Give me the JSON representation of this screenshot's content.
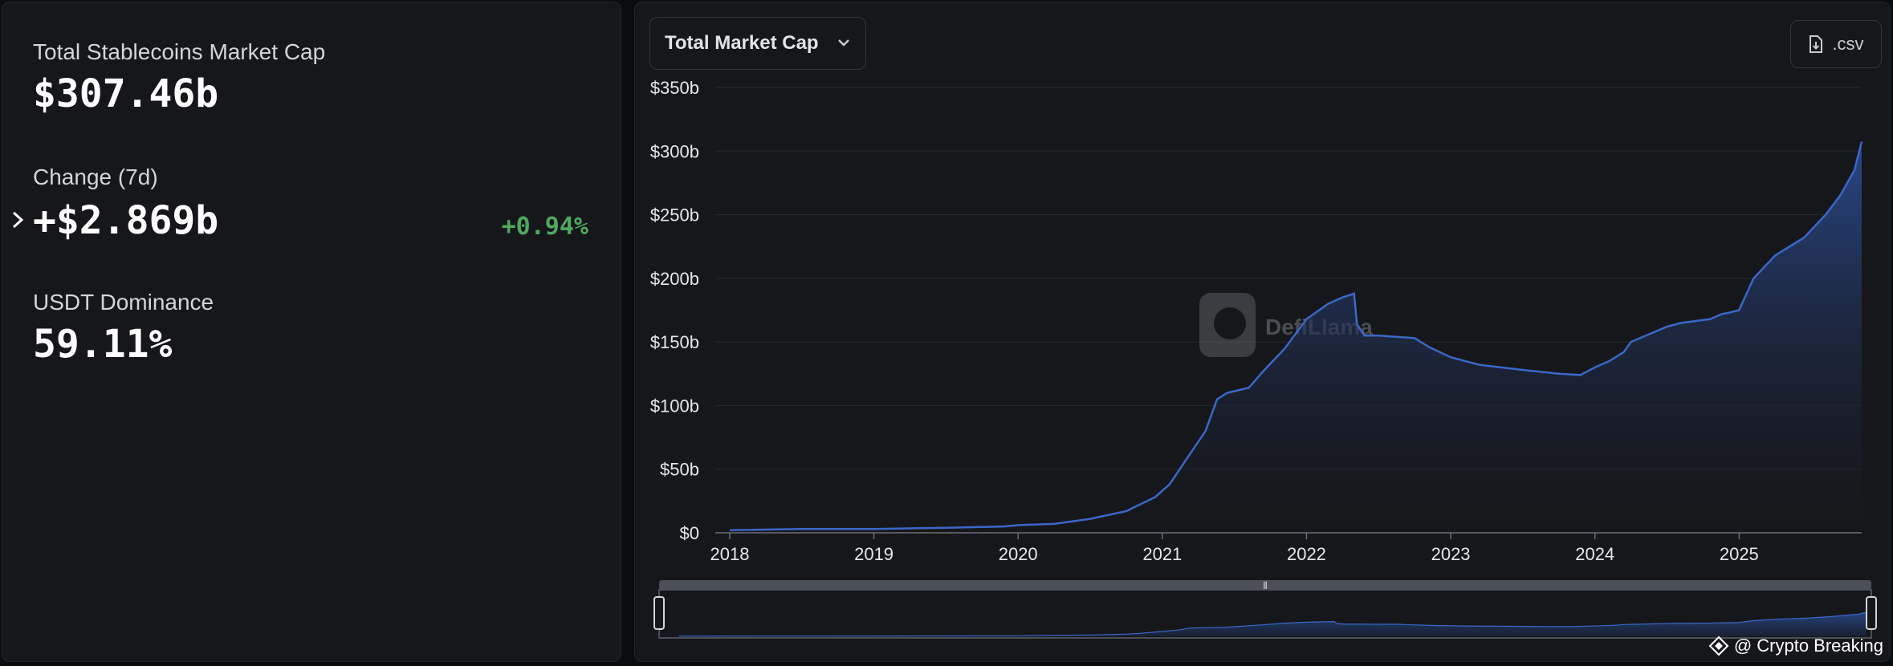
{
  "stats": {
    "market_cap_label": "Total Stablecoins Market Cap",
    "market_cap_value": "$307.46b",
    "change_label": "Change (7d)",
    "change_value": "+$2.869b",
    "change_pct": "+0.94%",
    "dominance_label": "USDT Dominance",
    "dominance_value": "59.11%"
  },
  "controls": {
    "dropdown_label": "Total Market Cap",
    "csv_label": ".csv"
  },
  "watermark": "DefiLlama",
  "credit": "@ Crypto Breaking",
  "colors": {
    "accent": "#3b67c9",
    "area_top": "#2a4a8e",
    "positive": "#4ea85f",
    "background": "#16171a"
  },
  "chart_data": {
    "type": "area",
    "title": "",
    "xlabel": "",
    "ylabel": "",
    "ylim": [
      0,
      350
    ],
    "y_ticks": [
      "$0",
      "$50b",
      "$100b",
      "$150b",
      "$200b",
      "$250b",
      "$300b",
      "$350b"
    ],
    "y_tick_values": [
      0,
      50,
      100,
      150,
      200,
      250,
      300,
      350
    ],
    "x_ticks": [
      "2018",
      "2019",
      "2020",
      "2021",
      "2022",
      "2023",
      "2024",
      "2025"
    ],
    "x_tick_values": [
      2018,
      2019,
      2020,
      2021,
      2022,
      2023,
      2024,
      2025
    ],
    "xlim": [
      2017.9,
      2025.85
    ],
    "series": [
      {
        "values_unit": "billions USD",
        "x": [
          2018.0,
          2018.5,
          2019.0,
          2019.5,
          2019.9,
          2020.0,
          2020.25,
          2020.5,
          2020.75,
          2020.95,
          2021.05,
          2021.15,
          2021.3,
          2021.38,
          2021.45,
          2021.6,
          2021.7,
          2021.85,
          2022.0,
          2022.15,
          2022.25,
          2022.33,
          2022.35,
          2022.4,
          2022.5,
          2022.75,
          2022.85,
          2023.0,
          2023.2,
          2023.5,
          2023.75,
          2023.9,
          2024.0,
          2024.1,
          2024.2,
          2024.25,
          2024.5,
          2024.6,
          2024.8,
          2024.88,
          2024.93,
          2025.0,
          2025.1,
          2025.25,
          2025.45,
          2025.6,
          2025.7,
          2025.8,
          2025.85
        ],
        "values": [
          2,
          3,
          3,
          4,
          5,
          6,
          7,
          11,
          17,
          28,
          38,
          55,
          80,
          105,
          110,
          114,
          127,
          145,
          168,
          180,
          185,
          188,
          164,
          155,
          155,
          153,
          146,
          138,
          132,
          128,
          125,
          124,
          130,
          135,
          142,
          150,
          162,
          165,
          168,
          172,
          173,
          175,
          200,
          218,
          232,
          250,
          265,
          285,
          307.46
        ]
      }
    ]
  }
}
